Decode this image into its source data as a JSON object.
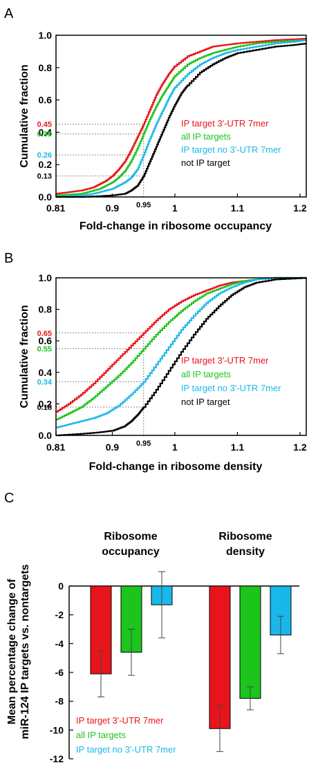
{
  "colors": {
    "red": "#e8141b",
    "green": "#1cc41c",
    "cyan": "#1ab8ea",
    "black": "#000000",
    "guide": "#8a8a8a"
  },
  "chart_data": [
    {
      "panel": "A",
      "type": "line",
      "xlabel": "Fold-change in ribosome occupancy",
      "ylabel": "Cumulative fraction",
      "xlim": [
        0.81,
        1.21
      ],
      "ylim": [
        0,
        1
      ],
      "x_ticks": [
        "0.81",
        "0.9",
        "1",
        "1.1",
        "1.2"
      ],
      "y_ticks": [
        "0.0",
        "0.2",
        "0.4",
        "0.6",
        "0.8",
        "1.0"
      ],
      "vline": {
        "x": 0.95,
        "label": "0.95"
      },
      "hmarks": [
        {
          "y": 0.45,
          "label": "0.45",
          "color": "red"
        },
        {
          "y": 0.39,
          "label": "0.39",
          "color": "green"
        },
        {
          "y": 0.26,
          "label": "0.26",
          "color": "cyan"
        },
        {
          "y": 0.13,
          "label": "0.13",
          "color": "black"
        }
      ],
      "series": [
        {
          "name": "IP target 3'-UTR 7mer",
          "color": "red",
          "x": [
            0.81,
            0.83,
            0.85,
            0.87,
            0.88,
            0.89,
            0.9,
            0.91,
            0.92,
            0.93,
            0.94,
            0.95,
            0.96,
            0.97,
            0.98,
            0.99,
            1.0,
            1.02,
            1.04,
            1.06,
            1.08,
            1.1,
            1.13,
            1.16,
            1.19,
            1.21
          ],
          "y": [
            0.02,
            0.03,
            0.04,
            0.06,
            0.08,
            0.1,
            0.13,
            0.17,
            0.22,
            0.29,
            0.37,
            0.45,
            0.54,
            0.63,
            0.7,
            0.76,
            0.81,
            0.87,
            0.9,
            0.93,
            0.94,
            0.95,
            0.96,
            0.97,
            0.975,
            0.98
          ]
        },
        {
          "name": "all IP targets",
          "color": "green",
          "x": [
            0.81,
            0.83,
            0.85,
            0.87,
            0.88,
            0.89,
            0.9,
            0.91,
            0.92,
            0.93,
            0.94,
            0.95,
            0.96,
            0.97,
            0.98,
            0.99,
            1.0,
            1.02,
            1.04,
            1.06,
            1.08,
            1.1,
            1.13,
            1.16,
            1.19,
            1.21
          ],
          "y": [
            0.01,
            0.015,
            0.02,
            0.04,
            0.05,
            0.07,
            0.09,
            0.12,
            0.16,
            0.22,
            0.3,
            0.39,
            0.48,
            0.56,
            0.63,
            0.69,
            0.75,
            0.82,
            0.86,
            0.89,
            0.91,
            0.93,
            0.95,
            0.96,
            0.965,
            0.97
          ]
        },
        {
          "name": "IP target no 3'-UTR 7mer",
          "color": "cyan",
          "x": [
            0.81,
            0.83,
            0.85,
            0.87,
            0.88,
            0.89,
            0.9,
            0.91,
            0.92,
            0.93,
            0.94,
            0.95,
            0.96,
            0.97,
            0.98,
            0.99,
            1.0,
            1.02,
            1.04,
            1.06,
            1.08,
            1.1,
            1.13,
            1.16,
            1.19,
            1.21
          ],
          "y": [
            0.0,
            0.005,
            0.01,
            0.02,
            0.03,
            0.04,
            0.05,
            0.07,
            0.09,
            0.12,
            0.17,
            0.26,
            0.36,
            0.45,
            0.53,
            0.61,
            0.68,
            0.76,
            0.82,
            0.86,
            0.89,
            0.91,
            0.93,
            0.95,
            0.96,
            0.97
          ]
        },
        {
          "name": "not IP target",
          "color": "black",
          "x": [
            0.81,
            0.85,
            0.88,
            0.9,
            0.92,
            0.93,
            0.94,
            0.95,
            0.96,
            0.97,
            0.98,
            0.99,
            1.0,
            1.01,
            1.02,
            1.04,
            1.06,
            1.08,
            1.1,
            1.13,
            1.16,
            1.19,
            1.21
          ],
          "y": [
            0.0,
            0.0,
            0.005,
            0.01,
            0.02,
            0.04,
            0.07,
            0.13,
            0.22,
            0.31,
            0.4,
            0.49,
            0.57,
            0.64,
            0.69,
            0.77,
            0.82,
            0.86,
            0.89,
            0.91,
            0.93,
            0.94,
            0.95
          ]
        }
      ]
    },
    {
      "panel": "B",
      "type": "line",
      "xlabel": "Fold-change in ribosome density",
      "ylabel": "Cumulative fraction",
      "xlim": [
        0.81,
        1.21
      ],
      "ylim": [
        0,
        1
      ],
      "x_ticks": [
        "0.81",
        "0.9",
        "1",
        "1.1",
        "1.2"
      ],
      "y_ticks": [
        "0.0",
        "0.2",
        "0.4",
        "0.6",
        "0.8",
        "1.0"
      ],
      "vline": {
        "x": 0.95,
        "label": "0.95"
      },
      "hmarks": [
        {
          "y": 0.65,
          "label": "0.65",
          "color": "red"
        },
        {
          "y": 0.55,
          "label": "0.55",
          "color": "green"
        },
        {
          "y": 0.34,
          "label": "0.34",
          "color": "cyan"
        },
        {
          "y": 0.18,
          "label": "0.18",
          "color": "black"
        }
      ],
      "series": [
        {
          "name": "IP target 3'-UTR 7mer",
          "color": "red",
          "x": [
            0.81,
            0.83,
            0.85,
            0.87,
            0.89,
            0.91,
            0.93,
            0.95,
            0.97,
            0.99,
            1.01,
            1.03,
            1.05,
            1.07,
            1.09,
            1.11,
            1.13,
            1.16,
            1.21
          ],
          "y": [
            0.15,
            0.2,
            0.26,
            0.33,
            0.41,
            0.49,
            0.57,
            0.65,
            0.73,
            0.8,
            0.85,
            0.89,
            0.92,
            0.95,
            0.97,
            0.98,
            0.99,
            1.0,
            1.0
          ]
        },
        {
          "name": "all IP targets",
          "color": "green",
          "x": [
            0.81,
            0.83,
            0.85,
            0.87,
            0.89,
            0.91,
            0.93,
            0.95,
            0.97,
            0.99,
            1.01,
            1.03,
            1.05,
            1.07,
            1.09,
            1.11,
            1.13,
            1.16,
            1.21
          ],
          "y": [
            0.1,
            0.14,
            0.18,
            0.24,
            0.31,
            0.38,
            0.46,
            0.55,
            0.64,
            0.72,
            0.79,
            0.85,
            0.9,
            0.93,
            0.96,
            0.98,
            0.99,
            1.0,
            1.0
          ]
        },
        {
          "name": "IP target no 3'-UTR 7mer",
          "color": "cyan",
          "x": [
            0.81,
            0.83,
            0.85,
            0.87,
            0.89,
            0.91,
            0.93,
            0.95,
            0.97,
            0.99,
            1.01,
            1.03,
            1.05,
            1.07,
            1.09,
            1.11,
            1.13,
            1.16,
            1.21
          ],
          "y": [
            0.05,
            0.07,
            0.09,
            0.11,
            0.14,
            0.19,
            0.26,
            0.34,
            0.45,
            0.56,
            0.67,
            0.76,
            0.84,
            0.9,
            0.94,
            0.97,
            0.99,
            1.0,
            1.0
          ]
        },
        {
          "name": "not IP target",
          "color": "black",
          "x": [
            0.81,
            0.85,
            0.88,
            0.9,
            0.92,
            0.93,
            0.94,
            0.95,
            0.97,
            0.99,
            1.01,
            1.03,
            1.05,
            1.07,
            1.09,
            1.11,
            1.13,
            1.16,
            1.21
          ],
          "y": [
            0.0,
            0.01,
            0.02,
            0.03,
            0.06,
            0.09,
            0.13,
            0.18,
            0.29,
            0.41,
            0.53,
            0.64,
            0.74,
            0.82,
            0.89,
            0.94,
            0.97,
            0.99,
            1.0
          ]
        }
      ]
    },
    {
      "panel": "C",
      "type": "bar",
      "ylabel_lines": [
        "Mean percentage change of",
        "miR-124 IP targets vs. nontargets"
      ],
      "ylim": [
        -12,
        0
      ],
      "y_ticks": [
        "0",
        "-2",
        "-4",
        "-6",
        "-8",
        "-10",
        "-12"
      ],
      "groups": [
        {
          "label_lines": [
            "Ribosome",
            "occupancy"
          ]
        },
        {
          "label_lines": [
            "Ribosome",
            "density"
          ]
        }
      ],
      "series": [
        {
          "name": "IP target 3'-UTR 7mer",
          "color": "red",
          "values": [
            -6.1,
            -9.9
          ],
          "err": [
            1.6,
            1.6
          ]
        },
        {
          "name": "all IP targets",
          "color": "green",
          "values": [
            -4.6,
            -7.8
          ],
          "err": [
            1.6,
            0.8
          ]
        },
        {
          "name": "IP target no 3'-UTR 7mer",
          "color": "cyan",
          "values": [
            -1.3,
            -3.4
          ],
          "err": [
            2.3,
            1.3
          ]
        }
      ]
    }
  ]
}
